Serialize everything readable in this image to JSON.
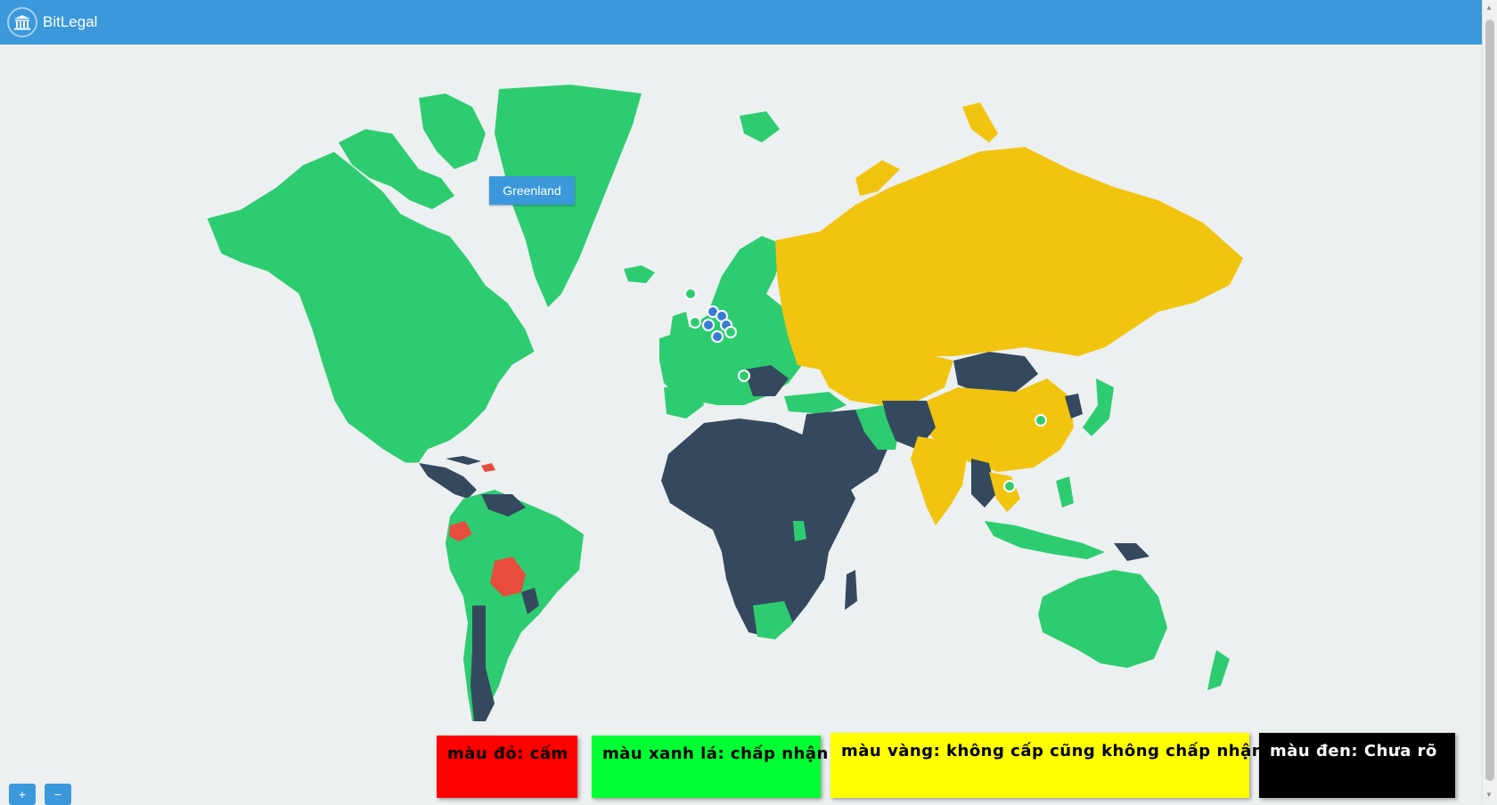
{
  "app": {
    "title": "BitLegal",
    "logo_icon": "bank-building-icon"
  },
  "map": {
    "tooltip": "Greenland",
    "colors": {
      "ocean": "#ecf0f1",
      "accepted": "#2ecc71",
      "neutral": "#f1c40f",
      "unknown": "#34495e",
      "banned": "#e74c3c",
      "marker": "#3a7bd5"
    }
  },
  "legend": [
    {
      "label": "màu đỏ: cấm",
      "bg": "#ff0000",
      "fg": "#000000"
    },
    {
      "label": "màu xanh lá: chấp nhận",
      "bg": "#00ff33",
      "fg": "#000000"
    },
    {
      "label": "màu vàng: không cấp cũng không chấp nhận",
      "bg": "#ffff00",
      "fg": "#000000"
    },
    {
      "label": "màu đen: Chưa rõ",
      "bg": "#000000",
      "fg": "#ffffff"
    }
  ],
  "zoom": {
    "in_label": "+",
    "out_label": "−"
  }
}
